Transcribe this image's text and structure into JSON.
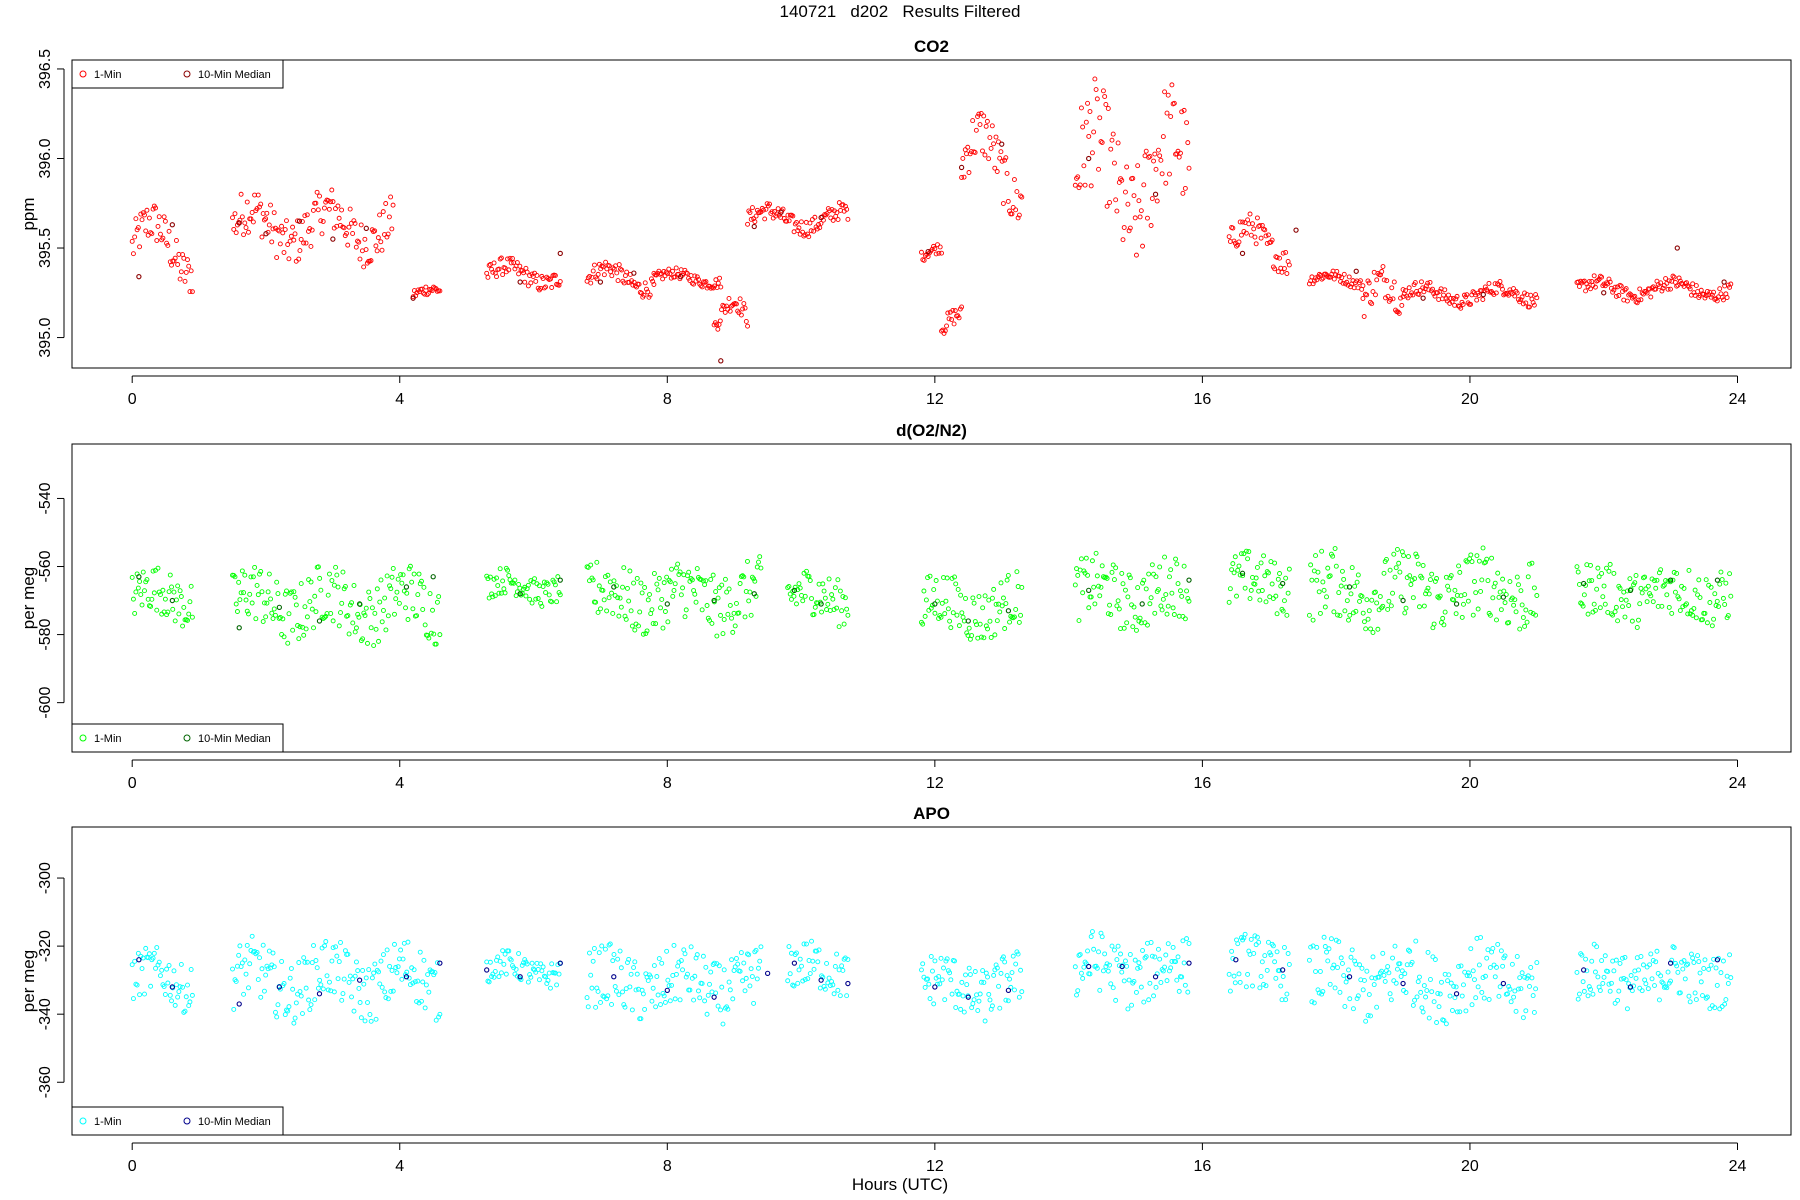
{
  "title": "140721   d202   Results Filtered",
  "xlabel": "Hours (UTC)",
  "chart_data": [
    {
      "type": "scatter",
      "title": "CO2",
      "ylabel": "ppm",
      "xlim": [
        -0.9,
        24.8
      ],
      "ylim": [
        394.83,
        396.55
      ],
      "xticks": [
        0,
        4,
        8,
        12,
        16,
        20,
        24
      ],
      "yticks": [
        395.0,
        395.5,
        396.0,
        396.5
      ],
      "ytick_labels": [
        "395.0",
        "395.5",
        "396.0",
        "396.5"
      ],
      "legend": "top-left",
      "colors": {
        "one_min": "#ff0000",
        "median": "#8b0000"
      },
      "series": [
        {
          "name": "1-Min",
          "segments": [
            {
              "x0": 0.0,
              "x1": 0.9,
              "base": 395.5,
              "amp": 0.15,
              "noise": 0.12
            },
            {
              "x0": 1.5,
              "x1": 3.9,
              "base": 395.62,
              "amp": 0.1,
              "noise": 0.13
            },
            {
              "x0": 4.2,
              "x1": 4.6,
              "base": 395.24,
              "amp": 0.03,
              "noise": 0.03
            },
            {
              "x0": 5.3,
              "x1": 6.4,
              "base": 395.35,
              "amp": 0.05,
              "noise": 0.05
            },
            {
              "x0": 6.8,
              "x1": 7.8,
              "base": 395.33,
              "amp": 0.06,
              "noise": 0.05
            },
            {
              "x0": 7.8,
              "x1": 8.8,
              "base": 395.33,
              "amp": 0.03,
              "noise": 0.03
            },
            {
              "x0": 8.7,
              "x1": 9.2,
              "base": 395.05,
              "amp": 0.15,
              "noise": 0.05
            },
            {
              "x0": 9.2,
              "x1": 10.7,
              "base": 395.66,
              "amp": 0.05,
              "noise": 0.05
            },
            {
              "x0": 11.8,
              "x1": 12.1,
              "base": 395.45,
              "amp": 0.05,
              "noise": 0.03
            },
            {
              "x0": 12.1,
              "x1": 12.4,
              "base": 395.05,
              "amp": 0.08,
              "noise": 0.05
            },
            {
              "x0": 12.4,
              "x1": 13.3,
              "base": 395.95,
              "amp": 0.2,
              "noise": 0.15
            },
            {
              "x0": 14.1,
              "x1": 15.8,
              "base": 395.9,
              "amp": 0.25,
              "noise": 0.3
            },
            {
              "x0": 16.4,
              "x1": 17.3,
              "base": 395.52,
              "amp": 0.1,
              "noise": 0.08
            },
            {
              "x0": 17.6,
              "x1": 18.4,
              "base": 395.32,
              "amp": 0.03,
              "noise": 0.03
            },
            {
              "x0": 18.4,
              "x1": 19.0,
              "base": 395.2,
              "amp": 0.12,
              "noise": 0.1
            },
            {
              "x0": 19.0,
              "x1": 21.0,
              "base": 395.24,
              "amp": 0.04,
              "noise": 0.04
            },
            {
              "x0": 21.6,
              "x1": 23.9,
              "base": 395.27,
              "amp": 0.04,
              "noise": 0.04
            }
          ]
        },
        {
          "name": "10-Min Median",
          "x": [
            0.1,
            0.6,
            1.6,
            2.0,
            2.5,
            3.0,
            3.5,
            4.2,
            5.8,
            6.4,
            7.0,
            7.5,
            8.2,
            8.8,
            9.3,
            9.7,
            10.3,
            11.9,
            12.4,
            13.0,
            14.3,
            15.3,
            16.6,
            17.4,
            18.3,
            19.3,
            20.2,
            22.0,
            23.1,
            23.8
          ],
          "y": [
            395.34,
            395.63,
            395.64,
            395.58,
            395.65,
            395.55,
            395.61,
            395.22,
            395.31,
            395.47,
            395.31,
            395.36,
            395.34,
            394.87,
            395.62,
            395.7,
            395.67,
            395.48,
            395.95,
            396.08,
            396.0,
            395.8,
            395.47,
            395.6,
            395.37,
            395.22,
            395.24,
            395.25,
            395.5,
            395.31
          ]
        }
      ]
    },
    {
      "type": "scatter",
      "title": "d(O2/N2)",
      "ylabel": "per meg",
      "xlim": [
        -0.9,
        24.8
      ],
      "ylim": [
        -614.5,
        -524
      ],
      "xticks": [
        0,
        4,
        8,
        12,
        16,
        20,
        24
      ],
      "yticks": [
        -540,
        -560,
        -580,
        -600
      ],
      "ytick_labels": [
        "-540",
        "-560",
        "-580",
        "-600"
      ],
      "legend": "bottom-left",
      "colors": {
        "one_min": "#00ff00",
        "median": "#006400"
      },
      "series": [
        {
          "name": "1-Min",
          "segments": [
            {
              "x0": 0.0,
              "x1": 0.9,
              "base": -569,
              "amp": 3,
              "noise": 7
            },
            {
              "x0": 1.5,
              "x1": 4.6,
              "base": -571,
              "amp": 4,
              "noise": 9
            },
            {
              "x0": 5.3,
              "x1": 6.4,
              "base": -566,
              "amp": 2,
              "noise": 4
            },
            {
              "x0": 6.8,
              "x1": 9.4,
              "base": -569,
              "amp": 3,
              "noise": 9
            },
            {
              "x0": 9.8,
              "x1": 10.7,
              "base": -569,
              "amp": 2,
              "noise": 7
            },
            {
              "x0": 11.8,
              "x1": 13.3,
              "base": -572,
              "amp": 3,
              "noise": 8
            },
            {
              "x0": 14.1,
              "x1": 15.8,
              "base": -568,
              "amp": 3,
              "noise": 9
            },
            {
              "x0": 16.4,
              "x1": 17.3,
              "base": -565,
              "amp": 2,
              "noise": 8
            },
            {
              "x0": 17.6,
              "x1": 21.0,
              "base": -567,
              "amp": 3,
              "noise": 10
            },
            {
              "x0": 21.6,
              "x1": 23.9,
              "base": -568,
              "amp": 2,
              "noise": 8
            }
          ]
        },
        {
          "name": "10-Min Median",
          "x": [
            0.1,
            0.6,
            1.6,
            2.2,
            2.8,
            3.4,
            4.1,
            4.5,
            5.8,
            6.4,
            7.2,
            8.0,
            8.7,
            9.3,
            9.9,
            10.3,
            12.0,
            12.5,
            13.1,
            14.3,
            15.1,
            15.8,
            16.6,
            17.2,
            18.2,
            19.0,
            19.8,
            20.5,
            21.7,
            22.4,
            23.0,
            23.7
          ],
          "y": [
            -563,
            -570,
            -578,
            -572,
            -576,
            -571,
            -566,
            -563,
            -568,
            -564,
            -566,
            -571,
            -570,
            -568,
            -567,
            -571,
            -571,
            -576,
            -573,
            -567,
            -571,
            -564,
            -562,
            -565,
            -566,
            -570,
            -571,
            -569,
            -565,
            -567,
            -564,
            -564
          ]
        }
      ]
    },
    {
      "type": "scatter",
      "title": "APO",
      "ylabel": "per meg",
      "xlim": [
        -0.9,
        24.8
      ],
      "ylim": [
        -375.5,
        -285
      ],
      "xticks": [
        0,
        4,
        8,
        12,
        16,
        20,
        24
      ],
      "yticks": [
        -300,
        -320,
        -340,
        -360
      ],
      "ytick_labels": [
        "-300",
        "-320",
        "-340",
        "-360"
      ],
      "legend": "bottom-left",
      "colors": {
        "one_min": "#00ffff",
        "median": "#00008b"
      },
      "series": [
        {
          "name": "1-Min",
          "segments": [
            {
              "x0": 0.0,
              "x1": 0.9,
              "base": -330,
              "amp": 3,
              "noise": 7
            },
            {
              "x0": 1.5,
              "x1": 4.6,
              "base": -330,
              "amp": 4,
              "noise": 9
            },
            {
              "x0": 5.3,
              "x1": 6.4,
              "base": -327,
              "amp": 2,
              "noise": 4
            },
            {
              "x0": 6.8,
              "x1": 9.4,
              "base": -331,
              "amp": 3,
              "noise": 9
            },
            {
              "x0": 9.8,
              "x1": 10.7,
              "base": -327,
              "amp": 2,
              "noise": 7
            },
            {
              "x0": 11.8,
              "x1": 13.3,
              "base": -332,
              "amp": 3,
              "noise": 8
            },
            {
              "x0": 14.1,
              "x1": 15.8,
              "base": -327,
              "amp": 3,
              "noise": 9
            },
            {
              "x0": 16.4,
              "x1": 17.3,
              "base": -326,
              "amp": 2,
              "noise": 8
            },
            {
              "x0": 17.6,
              "x1": 21.0,
              "base": -330,
              "amp": 3,
              "noise": 10
            },
            {
              "x0": 21.6,
              "x1": 23.9,
              "base": -329,
              "amp": 2,
              "noise": 8
            }
          ]
        },
        {
          "name": "10-Min Median",
          "x": [
            0.1,
            0.6,
            1.6,
            2.2,
            2.8,
            3.4,
            4.1,
            4.6,
            5.3,
            5.8,
            6.4,
            7.2,
            8.0,
            8.7,
            9.5,
            9.9,
            10.3,
            10.7,
            12.0,
            12.5,
            13.1,
            14.3,
            14.8,
            15.3,
            15.8,
            16.5,
            17.2,
            18.2,
            19.0,
            19.8,
            20.5,
            21.7,
            22.4,
            23.0,
            23.7
          ],
          "y": [
            -324,
            -332,
            -337,
            -332,
            -334,
            -330,
            -329,
            -325,
            -327,
            -329,
            -325,
            -329,
            -333,
            -335,
            -328,
            -325,
            -330,
            -331,
            -332,
            -335,
            -333,
            -326,
            -326,
            -329,
            -325,
            -324,
            -327,
            -329,
            -331,
            -334,
            -331,
            -327,
            -332,
            -325,
            -324
          ]
        }
      ]
    }
  ]
}
